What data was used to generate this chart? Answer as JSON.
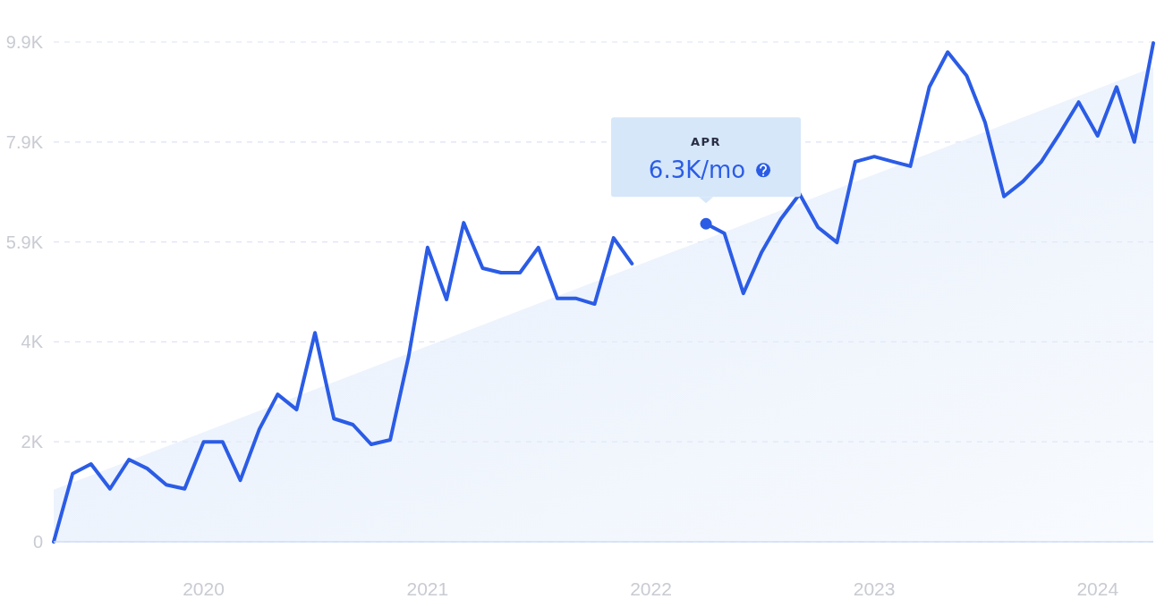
{
  "chart_data": {
    "type": "line",
    "x": [
      "2019-05",
      "2019-06",
      "2019-07",
      "2019-08",
      "2019-09",
      "2019-10",
      "2019-11",
      "2019-12",
      "2020-01",
      "2020-02",
      "2020-03",
      "2020-04",
      "2020-05",
      "2020-06",
      "2020-07",
      "2020-08",
      "2020-09",
      "2020-10",
      "2020-11",
      "2020-12",
      "2021-01",
      "2021-02",
      "2021-03",
      "2021-04",
      "2021-05",
      "2021-06",
      "2021-07",
      "2021-08",
      "2021-09",
      "2021-10",
      "2021-11",
      "2021-12",
      "2022-01",
      "2022-02",
      "2022-03",
      "2022-04",
      "2022-05",
      "2022-06",
      "2022-07",
      "2022-08",
      "2022-09",
      "2022-10",
      "2022-11",
      "2022-12",
      "2023-01",
      "2023-02",
      "2023-03",
      "2023-04",
      "2023-05",
      "2023-06",
      "2023-07",
      "2023-08",
      "2023-09",
      "2023-10",
      "2023-11",
      "2023-12",
      "2024-01",
      "2024-02",
      "2024-03",
      "2024-04"
    ],
    "series": [
      {
        "type": "area",
        "color": "#e3edfb",
        "x": [
          "2019-05",
          "2024-04"
        ],
        "values": [
          1030,
          9400
        ]
      },
      {
        "color": "#2b5ce6",
        "values": [
          0,
          1350,
          1540,
          1050,
          1630,
          1450,
          1130,
          1050,
          1980,
          1980,
          1220,
          2230,
          2920,
          2620,
          4140,
          2440,
          2320,
          1930,
          2020,
          3670,
          5830,
          4800,
          6320,
          5420,
          5330,
          5330,
          5830,
          4820,
          4820,
          4710,
          6020,
          5510,
          null,
          null,
          null,
          6300,
          6110,
          4920,
          5740,
          6390,
          6890,
          6230,
          5930,
          7530,
          7630,
          7530,
          7440,
          9010,
          9700,
          9230,
          8310,
          6840,
          7140,
          7530,
          8110,
          8710,
          8040,
          9010,
          7920,
          9880
        ]
      }
    ],
    "xlim": [
      "2019-05",
      "2024-04"
    ],
    "xticks": [
      {
        "value": "2020-01",
        "label": "2020"
      },
      {
        "value": "2021-01",
        "label": "2021"
      },
      {
        "value": "2022-01",
        "label": "2022"
      },
      {
        "value": "2023-01",
        "label": "2023"
      },
      {
        "value": "2024-01",
        "label": "2024"
      }
    ],
    "ylim": [
      0,
      9900
    ],
    "yticks": [
      0,
      {
        "value": 1980,
        "label": "2K"
      },
      {
        "value": 3960,
        "label": "4K"
      },
      {
        "value": 5940,
        "label": "5.9K"
      },
      {
        "value": 7920,
        "label": "7.9K"
      },
      {
        "value": 9900,
        "label": "9.9K"
      }
    ],
    "grid": "y",
    "marker": "none",
    "line_style": "solid",
    "annotations": [
      "APR",
      {
        "text": "6.3K/mo",
        "x": "2022-04",
        "y": 6300
      }
    ]
  }
}
